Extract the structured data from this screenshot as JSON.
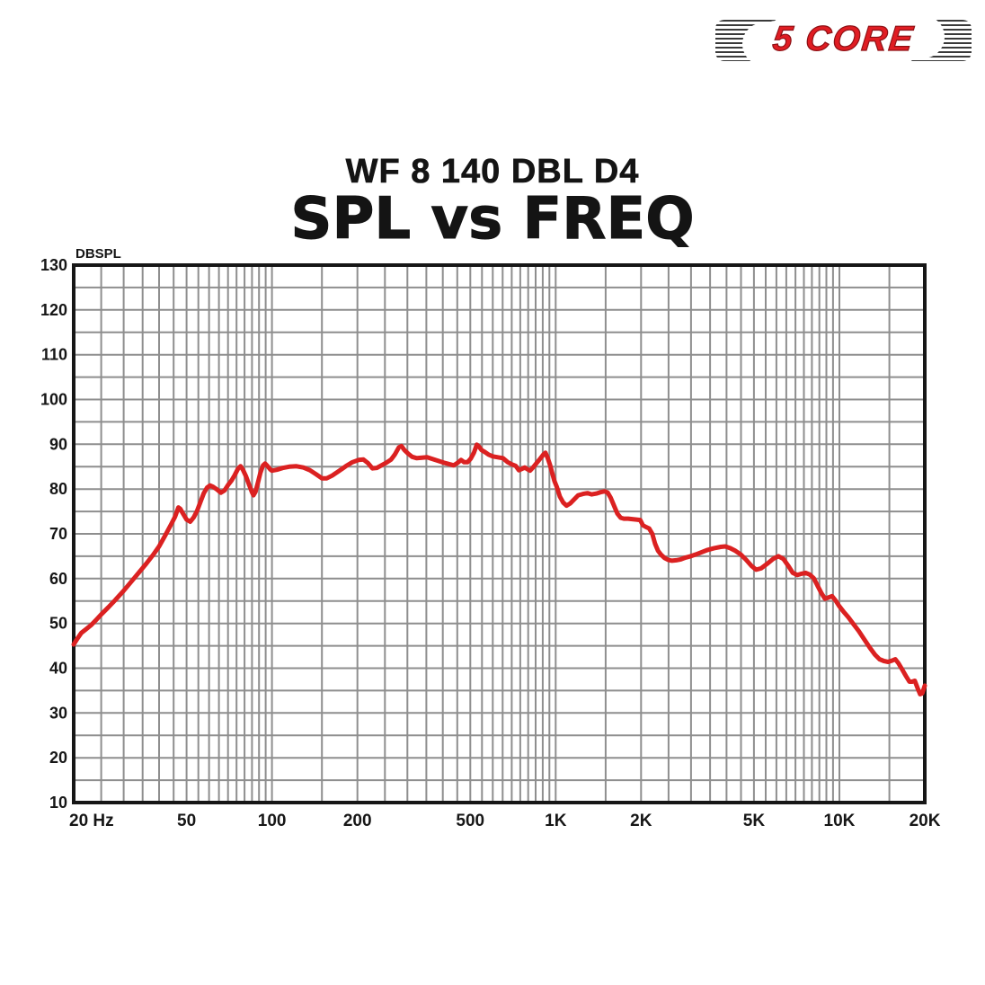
{
  "logo": {
    "brand": "5 CORE",
    "color": "#e01d23"
  },
  "header": {
    "model": "WF 8 140 DBL D4",
    "title": "SPL vs FREQ"
  },
  "chart_data": {
    "type": "line",
    "title": "SPL vs FREQ",
    "subtitle": "WF 8 140 DBL D4",
    "x_scale": "log",
    "xlim": [
      20,
      20000
    ],
    "ylim": [
      10,
      130
    ],
    "y_axis_unit": "DBSPL",
    "xlabel": "",
    "ylabel": "DBSPL",
    "grid": {
      "visible": true,
      "color": "#8e8e8e",
      "y_minor_step_db": 5,
      "x_minor_pattern": "half-decade multiples: 25-95 step 5, 150-950 step 50, 1.5K-9.5K step 500, 15K"
    },
    "legend": "none",
    "y_ticks": [
      10,
      20,
      30,
      40,
      50,
      60,
      70,
      80,
      90,
      100,
      110,
      120,
      130
    ],
    "x_ticks": [
      {
        "label": "20 Hz",
        "value": 20
      },
      {
        "label": "50",
        "value": 50
      },
      {
        "label": "100",
        "value": 100
      },
      {
        "label": "200",
        "value": 200
      },
      {
        "label": "500",
        "value": 500
      },
      {
        "label": "1K",
        "value": 1000
      },
      {
        "label": "2K",
        "value": 2000
      },
      {
        "label": "5K",
        "value": 5000
      },
      {
        "label": "10K",
        "value": 10000
      },
      {
        "label": "20K",
        "value": 20000
      }
    ],
    "series": [
      {
        "name": "SPL frequency response (dB SPL vs Hz)",
        "color": "#db2121",
        "points": [
          [
            20,
            45.3
          ],
          [
            20.6,
            46.6
          ],
          [
            21.3,
            47.9
          ],
          [
            22,
            48.6
          ],
          [
            23,
            49.6
          ],
          [
            24,
            50.8
          ],
          [
            25,
            52
          ],
          [
            26.5,
            53.6
          ],
          [
            28,
            55.2
          ],
          [
            30,
            57.3
          ],
          [
            32,
            59.4
          ],
          [
            34,
            61.4
          ],
          [
            36,
            63.3
          ],
          [
            38,
            65.2
          ],
          [
            40,
            67.2
          ],
          [
            42,
            69.6
          ],
          [
            44,
            72
          ],
          [
            45.5,
            73.8
          ],
          [
            46.8,
            75.9
          ],
          [
            47.5,
            75.6
          ],
          [
            48.5,
            74.6
          ],
          [
            50,
            73.2
          ],
          [
            51.5,
            72.7
          ],
          [
            53,
            73.7
          ],
          [
            54.5,
            75.2
          ],
          [
            56,
            77.2
          ],
          [
            57.5,
            79.1
          ],
          [
            59,
            80.3
          ],
          [
            60.5,
            80.8
          ],
          [
            62,
            80.5
          ],
          [
            64,
            79.9
          ],
          [
            66,
            79.2
          ],
          [
            68,
            79.7
          ],
          [
            70,
            80.9
          ],
          [
            72,
            81.9
          ],
          [
            74,
            83.2
          ],
          [
            76,
            84.6
          ],
          [
            77.5,
            85.1
          ],
          [
            79,
            84.3
          ],
          [
            81,
            82.8
          ],
          [
            83,
            81
          ],
          [
            85,
            79.3
          ],
          [
            86,
            78.6
          ],
          [
            87.5,
            79.4
          ],
          [
            89,
            81.2
          ],
          [
            91,
            83.6
          ],
          [
            93,
            85.3
          ],
          [
            94.5,
            85.7
          ],
          [
            96.5,
            85.1
          ],
          [
            98.5,
            84.4
          ],
          [
            100,
            84.1
          ],
          [
            104,
            84.3
          ],
          [
            109,
            84.7
          ],
          [
            115,
            85
          ],
          [
            122,
            85.1
          ],
          [
            129,
            84.8
          ],
          [
            136,
            84.2
          ],
          [
            143,
            83.3
          ],
          [
            150,
            82.4
          ],
          [
            156,
            82.4
          ],
          [
            163,
            83
          ],
          [
            172,
            84
          ],
          [
            182,
            85.1
          ],
          [
            192,
            86
          ],
          [
            202,
            86.5
          ],
          [
            210,
            86.6
          ],
          [
            218,
            85.8
          ],
          [
            226,
            84.6
          ],
          [
            234,
            84.7
          ],
          [
            243,
            85.3
          ],
          [
            253,
            85.9
          ],
          [
            263,
            86.6
          ],
          [
            271,
            87.7
          ],
          [
            280,
            89.3
          ],
          [
            286,
            89.6
          ],
          [
            293,
            88.7
          ],
          [
            302,
            87.9
          ],
          [
            312,
            87.2
          ],
          [
            324,
            86.9
          ],
          [
            338,
            87
          ],
          [
            352,
            87.1
          ],
          [
            368,
            86.7
          ],
          [
            385,
            86.3
          ],
          [
            403,
            85.9
          ],
          [
            420,
            85.6
          ],
          [
            437,
            85.3
          ],
          [
            452,
            85.9
          ],
          [
            464,
            86.5
          ],
          [
            476,
            86
          ],
          [
            489,
            86
          ],
          [
            502,
            86.8
          ],
          [
            515,
            88.1
          ],
          [
            527,
            89.9
          ],
          [
            536,
            89.5
          ],
          [
            548,
            88.7
          ],
          [
            562,
            88.3
          ],
          [
            580,
            87.7
          ],
          [
            600,
            87.3
          ],
          [
            625,
            87.1
          ],
          [
            652,
            86.9
          ],
          [
            678,
            86
          ],
          [
            702,
            85.5
          ],
          [
            722,
            85.2
          ],
          [
            742,
            84.2
          ],
          [
            760,
            84.5
          ],
          [
            778,
            84.8
          ],
          [
            796,
            84.4
          ],
          [
            812,
            84.1
          ],
          [
            832,
            84.8
          ],
          [
            856,
            85.8
          ],
          [
            882,
            86.8
          ],
          [
            905,
            87.7
          ],
          [
            920,
            88.1
          ],
          [
            938,
            86.9
          ],
          [
            955,
            85.4
          ],
          [
            972,
            83.6
          ],
          [
            990,
            81.8
          ],
          [
            1010,
            80.4
          ],
          [
            1035,
            78.3
          ],
          [
            1062,
            77
          ],
          [
            1092,
            76.3
          ],
          [
            1125,
            76.8
          ],
          [
            1162,
            77.7
          ],
          [
            1200,
            78.6
          ],
          [
            1248,
            78.9
          ],
          [
            1295,
            79.1
          ],
          [
            1340,
            78.8
          ],
          [
            1388,
            79
          ],
          [
            1438,
            79.3
          ],
          [
            1488,
            79.5
          ],
          [
            1525,
            79.2
          ],
          [
            1562,
            78.1
          ],
          [
            1605,
            76.3
          ],
          [
            1650,
            74.5
          ],
          [
            1695,
            73.6
          ],
          [
            1740,
            73.4
          ],
          [
            1800,
            73.4
          ],
          [
            1860,
            73.3
          ],
          [
            1925,
            73.2
          ],
          [
            1985,
            73.1
          ],
          [
            2030,
            71.9
          ],
          [
            2085,
            71.5
          ],
          [
            2135,
            71.2
          ],
          [
            2190,
            70
          ],
          [
            2240,
            67.8
          ],
          [
            2295,
            66.2
          ],
          [
            2355,
            65.3
          ],
          [
            2420,
            64.6
          ],
          [
            2490,
            64.2
          ],
          [
            2570,
            64
          ],
          [
            2660,
            64.1
          ],
          [
            2760,
            64.3
          ],
          [
            2870,
            64.7
          ],
          [
            2990,
            65
          ],
          [
            3120,
            65.4
          ],
          [
            3270,
            65.9
          ],
          [
            3430,
            66.4
          ],
          [
            3620,
            66.8
          ],
          [
            3820,
            67.1
          ],
          [
            3960,
            67.2
          ],
          [
            4120,
            66.8
          ],
          [
            4300,
            66.2
          ],
          [
            4490,
            65.4
          ],
          [
            4690,
            64.2
          ],
          [
            4890,
            62.9
          ],
          [
            5090,
            62
          ],
          [
            5300,
            62.3
          ],
          [
            5560,
            63.3
          ],
          [
            5840,
            64.4
          ],
          [
            6100,
            65
          ],
          [
            6350,
            64.4
          ],
          [
            6600,
            62.9
          ],
          [
            6850,
            61.3
          ],
          [
            7100,
            60.8
          ],
          [
            7350,
            61.1
          ],
          [
            7600,
            61.3
          ],
          [
            7860,
            60.9
          ],
          [
            8120,
            60.1
          ],
          [
            8380,
            58.4
          ],
          [
            8640,
            56.8
          ],
          [
            8900,
            55.5
          ],
          [
            9150,
            55.8
          ],
          [
            9420,
            56.1
          ],
          [
            9700,
            55.1
          ],
          [
            10000,
            53.8
          ],
          [
            10350,
            52.6
          ],
          [
            10750,
            51.4
          ],
          [
            11200,
            49.9
          ],
          [
            11700,
            48.3
          ],
          [
            12250,
            46.4
          ],
          [
            12800,
            44.6
          ],
          [
            13350,
            43
          ],
          [
            13850,
            42
          ],
          [
            14350,
            41.6
          ],
          [
            14850,
            41.4
          ],
          [
            15350,
            41.7
          ],
          [
            15750,
            42
          ],
          [
            16150,
            41.1
          ],
          [
            16650,
            39.7
          ],
          [
            17150,
            38.3
          ],
          [
            17650,
            37
          ],
          [
            18050,
            37
          ],
          [
            18450,
            37.2
          ],
          [
            18850,
            35.6
          ],
          [
            19250,
            34.2
          ],
          [
            19600,
            34.4
          ],
          [
            20000,
            36.1
          ]
        ]
      }
    ]
  }
}
